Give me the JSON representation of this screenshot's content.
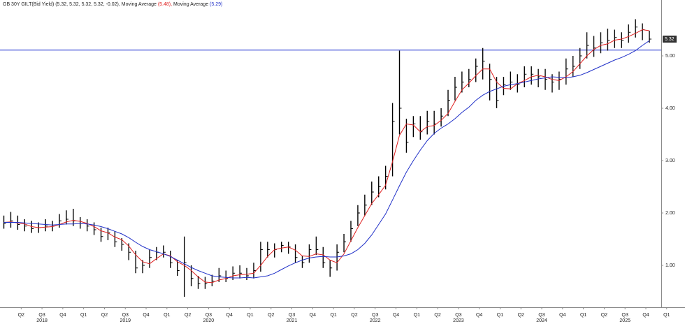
{
  "chart_data": {
    "type": "hlc",
    "title": "GB 30Y GILT(Bid Yield) (5.32, 5.32, 5.32, 5.32, -0.02),",
    "categories": [
      null,
      null,
      null,
      "Q2",
      null,
      null,
      "Q3",
      null,
      null,
      "Q4",
      null,
      null,
      "Q1",
      null,
      null,
      "Q2",
      null,
      null,
      "Q3",
      null,
      null,
      "Q4",
      null,
      null,
      "Q1",
      null,
      null,
      "Q2",
      null,
      null,
      "Q3",
      null,
      null,
      "Q4",
      null,
      null,
      "Q1",
      null,
      null,
      "Q2",
      null,
      null,
      "Q3",
      null,
      null,
      "Q4",
      null,
      null,
      "Q1",
      null,
      null,
      "Q2",
      null,
      null,
      "Q3",
      null,
      null,
      "Q4",
      null,
      null,
      "Q1",
      null,
      null,
      "Q2",
      null,
      null,
      "Q3",
      null,
      null,
      "Q4",
      null,
      null,
      "Q1",
      null,
      null,
      "Q2",
      null,
      null,
      "Q3",
      null,
      null,
      "Q4",
      null,
      null,
      "Q1",
      null,
      null,
      "Q2",
      null,
      null,
      "Q3",
      null,
      null,
      "Q4",
      null,
      null,
      "Q1"
    ],
    "years": [
      "2018",
      "2019",
      "2020",
      "2021",
      "2022",
      "2023",
      "2024",
      "2025"
    ],
    "high": [
      1.95,
      2.02,
      1.95,
      1.88,
      1.85,
      1.82,
      1.88,
      1.85,
      1.98,
      2.05,
      2.08,
      1.92,
      1.88,
      1.82,
      1.72,
      1.72,
      1.65,
      1.52,
      1.42,
      1.28,
      1.1,
      1.3,
      1.35,
      1.38,
      1.28,
      1.1,
      1.55,
      1.0,
      0.8,
      0.78,
      0.82,
      0.95,
      0.9,
      0.98,
      1.0,
      0.95,
      1.05,
      1.45,
      1.45,
      1.42,
      1.45,
      1.45,
      1.4,
      1.18,
      1.4,
      1.55,
      1.35,
      1.1,
      1.4,
      1.6,
      1.85,
      2.15,
      2.35,
      2.6,
      2.7,
      2.9,
      4.1,
      5.1,
      3.8,
      3.85,
      3.85,
      3.95,
      3.95,
      4.0,
      4.35,
      4.6,
      4.7,
      4.75,
      4.95,
      5.15,
      4.85,
      4.6,
      4.6,
      4.7,
      4.65,
      4.8,
      4.8,
      4.75,
      4.75,
      4.65,
      4.7,
      4.95,
      5.0,
      5.15,
      5.45,
      5.38,
      5.45,
      5.52,
      5.5,
      5.45,
      5.6,
      5.7,
      5.62,
      5.48,
      null,
      null,
      null
    ],
    "low": [
      1.7,
      1.72,
      1.68,
      1.65,
      1.62,
      1.62,
      1.65,
      1.65,
      1.72,
      1.78,
      1.75,
      1.7,
      1.65,
      1.58,
      1.45,
      1.48,
      1.35,
      1.28,
      1.1,
      0.85,
      0.85,
      0.95,
      1.1,
      1.15,
      0.95,
      0.8,
      0.4,
      0.6,
      0.55,
      0.55,
      0.6,
      0.68,
      0.68,
      0.72,
      0.75,
      0.72,
      0.75,
      0.88,
      1.15,
      1.15,
      1.25,
      1.22,
      1.05,
      0.95,
      1.05,
      1.2,
      0.95,
      0.78,
      0.9,
      1.25,
      1.45,
      1.75,
      1.95,
      2.15,
      2.3,
      2.45,
      2.7,
      3.5,
      3.15,
      3.45,
      3.4,
      3.5,
      3.5,
      3.65,
      3.85,
      4.15,
      4.3,
      4.4,
      4.5,
      4.55,
      4.15,
      4.0,
      4.25,
      4.35,
      4.3,
      4.4,
      4.45,
      4.4,
      4.35,
      4.3,
      4.35,
      4.45,
      4.6,
      4.75,
      4.95,
      4.98,
      5.05,
      5.1,
      5.15,
      5.15,
      5.25,
      5.35,
      5.3,
      5.25,
      null,
      null,
      null
    ],
    "close": [
      1.8,
      1.85,
      1.78,
      1.75,
      1.7,
      1.72,
      1.75,
      1.75,
      1.85,
      1.88,
      1.85,
      1.8,
      1.75,
      1.68,
      1.55,
      1.62,
      1.45,
      1.4,
      1.25,
      0.95,
      1.0,
      1.15,
      1.25,
      1.25,
      1.05,
      0.9,
      1.05,
      0.75,
      0.65,
      0.65,
      0.7,
      0.8,
      0.75,
      0.85,
      0.85,
      0.8,
      0.9,
      1.3,
      1.3,
      1.3,
      1.38,
      1.35,
      1.15,
      1.05,
      1.3,
      1.3,
      1.05,
      0.95,
      1.25,
      1.45,
      1.7,
      2.0,
      2.15,
      2.4,
      2.5,
      2.7,
      3.75,
      4.0,
      3.35,
      3.7,
      3.55,
      3.75,
      3.7,
      3.85,
      4.15,
      4.4,
      4.5,
      4.55,
      4.8,
      4.9,
      4.55,
      4.15,
      4.45,
      4.5,
      4.45,
      4.65,
      4.65,
      4.6,
      4.55,
      4.5,
      4.55,
      4.75,
      4.8,
      5.0,
      5.2,
      5.15,
      5.25,
      5.3,
      5.35,
      5.3,
      5.45,
      5.55,
      5.5,
      5.32,
      null,
      null,
      null
    ],
    "color": "#000000",
    "series": [
      {
        "name": "Moving Average",
        "legend_value": "(5.48),",
        "color": "#e02020",
        "values": [
          1.82,
          1.83,
          1.81,
          1.79,
          1.74,
          1.72,
          1.73,
          1.74,
          1.78,
          1.83,
          1.86,
          1.84,
          1.8,
          1.74,
          1.66,
          1.62,
          1.54,
          1.49,
          1.37,
          1.2,
          1.07,
          1.03,
          1.13,
          1.22,
          1.18,
          1.07,
          1.0,
          0.9,
          0.78,
          0.68,
          0.67,
          0.72,
          0.75,
          0.8,
          0.82,
          0.83,
          0.85,
          1.0,
          1.17,
          1.3,
          1.33,
          1.35,
          1.29,
          1.18,
          1.17,
          1.22,
          1.2,
          1.1,
          1.05,
          1.22,
          1.47,
          1.72,
          1.95,
          2.18,
          2.35,
          2.53,
          2.98,
          3.48,
          3.7,
          3.68,
          3.55,
          3.65,
          3.67,
          3.77,
          3.9,
          4.13,
          4.35,
          4.48,
          4.62,
          4.75,
          4.75,
          4.5,
          4.38,
          4.37,
          4.47,
          4.53,
          4.6,
          4.63,
          4.6,
          4.55,
          4.53,
          4.6,
          4.7,
          4.85,
          5.0,
          5.12,
          5.2,
          5.23,
          5.3,
          5.32,
          5.37,
          5.43,
          5.5,
          5.48,
          null,
          null,
          null
        ]
      },
      {
        "name": "Moving Average",
        "legend_value": "(5.29)",
        "color": "#2030c8",
        "values": [
          1.82,
          1.82,
          1.82,
          1.81,
          1.8,
          1.79,
          1.78,
          1.77,
          1.78,
          1.79,
          1.79,
          1.8,
          1.79,
          1.77,
          1.74,
          1.7,
          1.65,
          1.6,
          1.53,
          1.44,
          1.36,
          1.3,
          1.26,
          1.22,
          1.17,
          1.1,
          1.03,
          0.96,
          0.9,
          0.85,
          0.8,
          0.78,
          0.77,
          0.76,
          0.76,
          0.77,
          0.76,
          0.78,
          0.8,
          0.85,
          0.92,
          0.99,
          1.05,
          1.1,
          1.14,
          1.16,
          1.17,
          1.16,
          1.16,
          1.18,
          1.22,
          1.3,
          1.42,
          1.58,
          1.78,
          1.98,
          2.25,
          2.52,
          2.78,
          3.0,
          3.2,
          3.38,
          3.52,
          3.62,
          3.7,
          3.8,
          3.92,
          4.02,
          4.15,
          4.25,
          4.32,
          4.37,
          4.42,
          4.45,
          4.47,
          4.5,
          4.53,
          4.56,
          4.58,
          4.6,
          4.59,
          4.58,
          4.6,
          4.63,
          4.68,
          4.74,
          4.8,
          4.86,
          4.92,
          4.97,
          5.03,
          5.1,
          5.2,
          5.29,
          null,
          null,
          null
        ]
      }
    ],
    "hline": {
      "value": 5.11,
      "color": "#1a2fd0"
    },
    "last_price": {
      "value": 5.32,
      "label": "5.32"
    },
    "ylim": [
      0.2,
      6.04
    ],
    "yticks": [
      {
        "value": 1,
        "label": "1.00"
      },
      {
        "value": 2,
        "label": "2.00"
      },
      {
        "value": 3,
        "label": "3.00"
      },
      {
        "value": 4,
        "label": "4.00"
      },
      {
        "value": 5,
        "label": "5.00"
      }
    ]
  }
}
